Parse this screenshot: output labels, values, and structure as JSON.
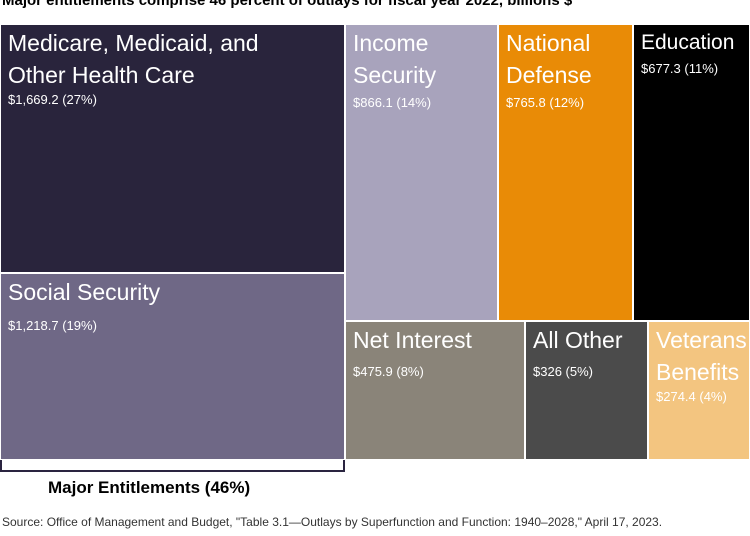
{
  "chart_data": {
    "type": "treemap",
    "title": "Major entitlements comprise 46 percent of outlays for fiscal year 2022, billions $",
    "unit": "billions $",
    "items": [
      {
        "name": "Medicare, Medicaid, and Other Health Care",
        "value": 1669.2,
        "percent": 27,
        "label": "$1,669.2 (27%)",
        "color": "#29243c",
        "text_color": "#ffffff"
      },
      {
        "name": "Social Security",
        "value": 1218.7,
        "percent": 19,
        "label": "$1,218.7 (19%)",
        "color": "#6f6886",
        "text_color": "#ffffff"
      },
      {
        "name": "Income Security",
        "value": 866.1,
        "percent": 14,
        "label": "$866.1 (14%)",
        "color": "#a8a3bc",
        "text_color": "#ffffff"
      },
      {
        "name": "National Defense",
        "value": 765.8,
        "percent": 12,
        "label": "$765.8 (12%)",
        "color": "#e98b06",
        "text_color": "#ffffff"
      },
      {
        "name": "Education",
        "value": 677.3,
        "percent": 11,
        "label": "$677.3 (11%)",
        "color": "#000000",
        "text_color": "#ffffff"
      },
      {
        "name": "Net Interest",
        "value": 475.9,
        "percent": 8,
        "label": "$475.9 (8%)",
        "color": "#8a8479",
        "text_color": "#ffffff"
      },
      {
        "name": "All Other",
        "value": 326,
        "percent": 5,
        "label": "$326 (5%)",
        "color": "#4b4b4b",
        "text_color": "#ffffff"
      },
      {
        "name": "Veterans Benefits",
        "value": 274.4,
        "percent": 4,
        "label": "$274.4 (4%)",
        "color": "#f3c580",
        "text_color": "#ffffff"
      }
    ],
    "group": {
      "label": "Major Entitlements (46%)",
      "members": [
        "Medicare, Medicaid, and Other Health Care",
        "Social Security"
      ]
    },
    "source": "Source: Office of Management and Budget, \"Table 3.1—Outlays by Superfunction and Function: 1940–2028,\" April 17, 2023."
  }
}
